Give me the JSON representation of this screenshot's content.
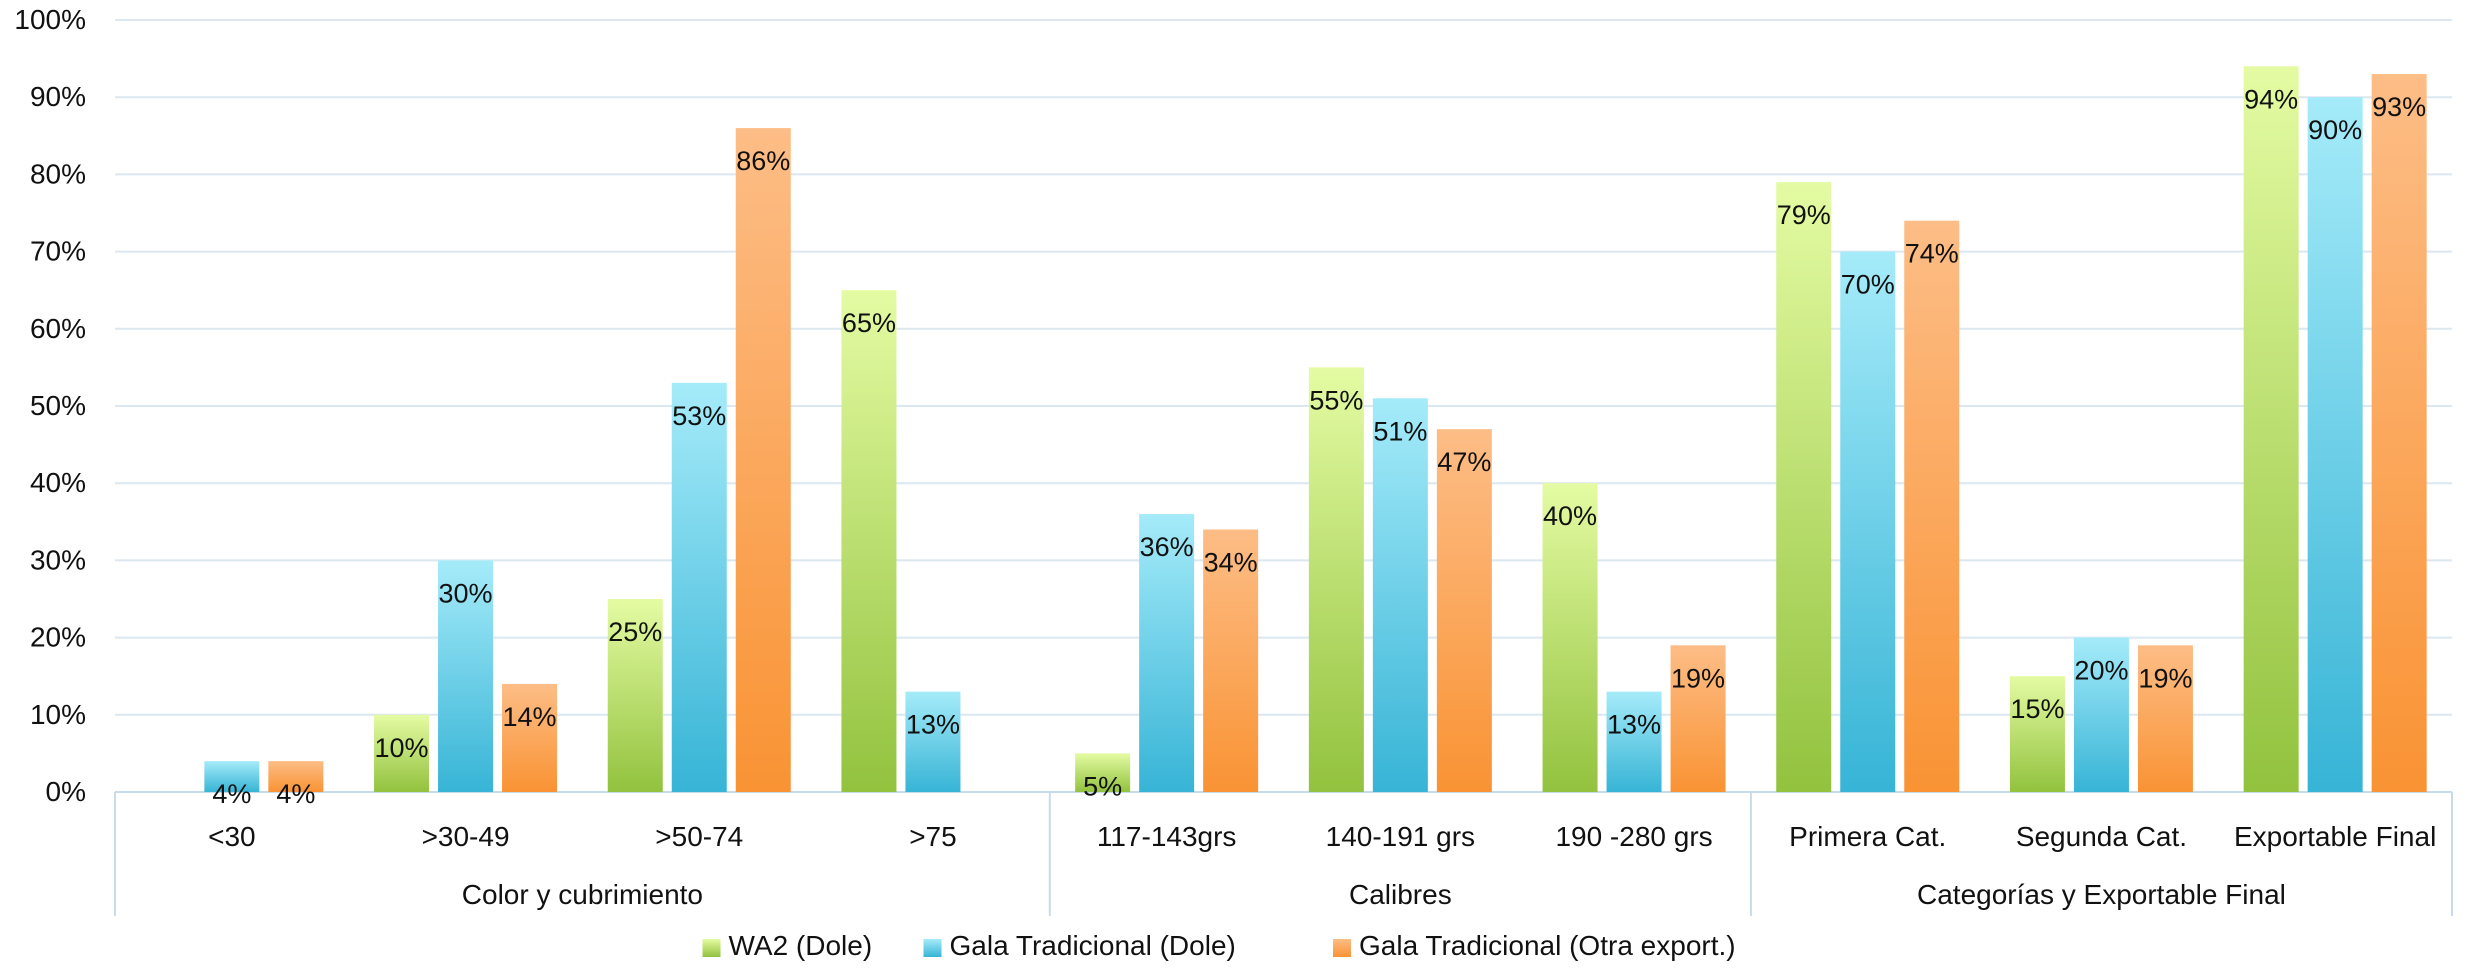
{
  "chart_data": {
    "type": "bar",
    "title": "",
    "xlabel": "",
    "ylabel": "",
    "ylim": [
      0,
      100
    ],
    "yticks": [
      "0%",
      "10%",
      "20%",
      "30%",
      "40%",
      "50%",
      "60%",
      "70%",
      "80%",
      "90%",
      "100%"
    ],
    "grid": true,
    "legend_position": "bottom",
    "groups": [
      {
        "name": "Color y cubrimiento",
        "categories": [
          "<30",
          ">30-49",
          ">50-74",
          ">75"
        ]
      },
      {
        "name": "Calibres",
        "categories": [
          "117-143grs",
          "140-191 grs",
          "190 -280 grs"
        ]
      },
      {
        "name": "Categorías y Exportable Final",
        "categories": [
          "Primera Cat.",
          "Segunda Cat.",
          "Exportable Final"
        ]
      }
    ],
    "categories": [
      "<30",
      ">30-49",
      ">50-74",
      ">75",
      "117-143grs",
      "140-191 grs",
      "190 -280 grs",
      "Primera Cat.",
      "Segunda Cat.",
      "Exportable Final"
    ],
    "series": [
      {
        "name": "WA2 (Dole)",
        "values": [
          null,
          10,
          25,
          65,
          5,
          55,
          40,
          79,
          15,
          94
        ],
        "labels": [
          "",
          "10%",
          "25%",
          "65%",
          "5%",
          "55%",
          "40%",
          "79%",
          "15%",
          "94%"
        ],
        "color_top": "#e4fba3",
        "color_bottom": "#92c23e"
      },
      {
        "name": "Gala Tradicional (Dole)",
        "values": [
          4,
          30,
          53,
          13,
          36,
          51,
          13,
          70,
          20,
          90
        ],
        "labels": [
          "4%",
          "30%",
          "53%",
          "13%",
          "36%",
          "51%",
          "13%",
          "70%",
          "20%",
          "90%"
        ],
        "color_top": "#a5ebf9",
        "color_bottom": "#37b4d6"
      },
      {
        "name": "Gala Tradicional (Otra export.)",
        "values": [
          4,
          14,
          86,
          null,
          34,
          47,
          19,
          74,
          19,
          93
        ],
        "labels": [
          "4%",
          "14%",
          "86%",
          "",
          "34%",
          "47%",
          "19%",
          "74%",
          "19%",
          "93%"
        ],
        "color_top": "#fdbd86",
        "color_bottom": "#f99334"
      }
    ],
    "colors": {
      "grid": "#dbe7f1",
      "axis": "#c7dbea",
      "text": "#111111"
    }
  }
}
